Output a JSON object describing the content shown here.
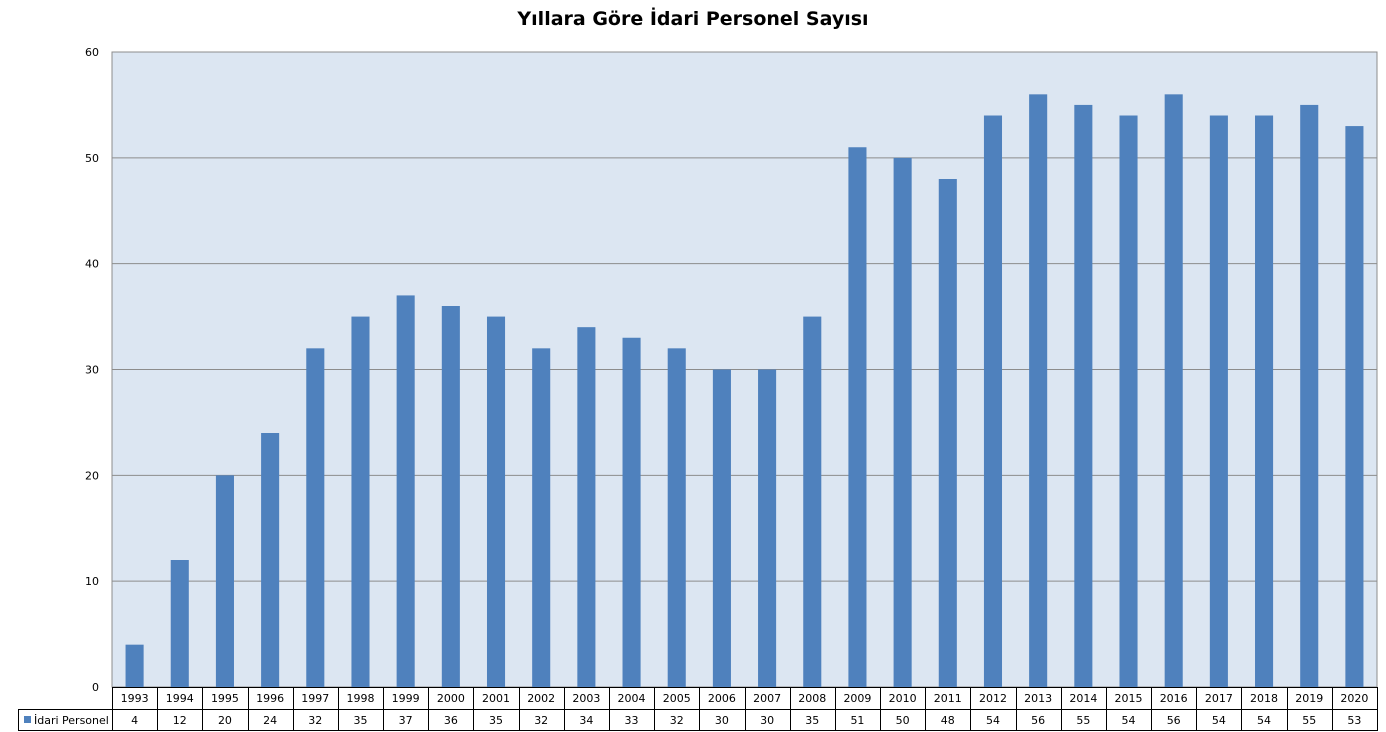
{
  "chart_data": {
    "type": "bar",
    "title": "Yıllara Göre İdari Personel Sayısı",
    "xlabel": "",
    "ylabel": "",
    "ylim": [
      0,
      60
    ],
    "yticks": [
      "0",
      "10",
      "20",
      "30",
      "40",
      "50",
      "60"
    ],
    "grid": true,
    "legend_placement": "data-table-left",
    "colors": {
      "bar": "#4f81bd",
      "plot_background": "#dce6f2",
      "gridline": "#8c8c8c"
    },
    "categories": [
      "1993",
      "1994",
      "1995",
      "1996",
      "1997",
      "1998",
      "1999",
      "2000",
      "2001",
      "2002",
      "2003",
      "2004",
      "2005",
      "2006",
      "2007",
      "2008",
      "2009",
      "2010",
      "2011",
      "2012",
      "2013",
      "2014",
      "2015",
      "2016",
      "2017",
      "2018",
      "2019",
      "2020"
    ],
    "series": [
      {
        "name": "İdari Personel",
        "values": [
          4,
          12,
          20,
          24,
          32,
          35,
          37,
          36,
          35,
          32,
          34,
          33,
          32,
          30,
          30,
          35,
          51,
          50,
          48,
          54,
          56,
          55,
          54,
          56,
          54,
          54,
          55,
          53
        ]
      }
    ]
  }
}
